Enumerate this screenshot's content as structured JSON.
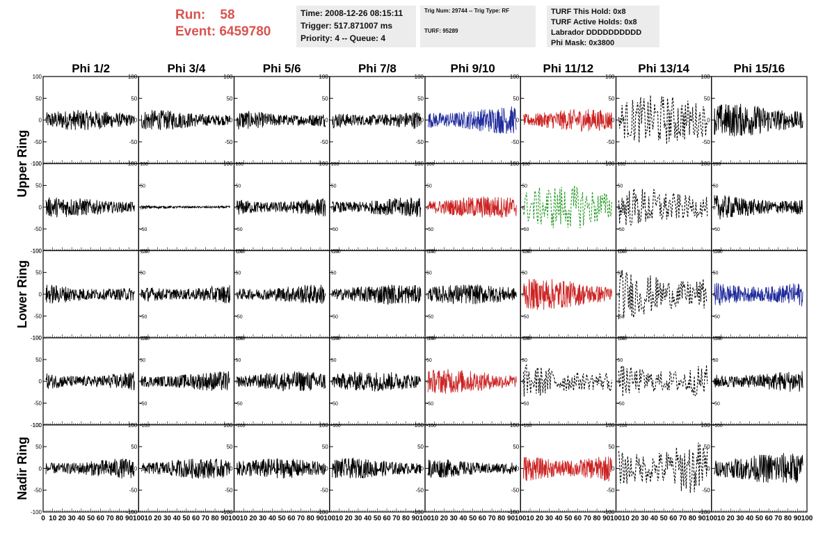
{
  "run_info": {
    "run_label": "Run:",
    "run_value": "58",
    "event_label": "Event:",
    "event_value": "6459780"
  },
  "header_panel": {
    "time": "Time: 2008-12-26 08:15:11",
    "trigger": "Trigger: 517.871007 ms",
    "priority": "Priority: 4 -- Queue: 4"
  },
  "trig_panel": {
    "trig": "Trig Num: 29744 -- Trig Type: RF",
    "turf": "TURF: 95289"
  },
  "turf_panel": {
    "this_hold": "TURF This Hold: 0x8",
    "active_holds": "TURF Active Holds: 0x8",
    "labrador": "Labrador DDDDDDDDDD",
    "phi_mask": "Phi Mask: 0x3800"
  },
  "colors": {
    "run_text": "#d9534f",
    "black": "#000000",
    "red": "#cc2222",
    "blue": "#1f2a9c",
    "green": "#229922"
  },
  "chart_data": {
    "type": "line",
    "columns": [
      "Phi 1/2",
      "Phi 3/4",
      "Phi 5/6",
      "Phi 7/8",
      "Phi 9/10",
      "Phi 11/12",
      "Phi 13/14",
      "Phi 15/16"
    ],
    "ring_labels": [
      "Upper Ring",
      "Lower Ring",
      "Nadir Ring"
    ],
    "ylim": [
      -100,
      100
    ],
    "xlim": [
      0,
      100
    ],
    "y_ticks": [
      "100",
      "50",
      "0",
      "-50",
      "-100"
    ],
    "x_tick_labels": [
      "0",
      "10",
      "20",
      "30",
      "40",
      "50",
      "60",
      "70",
      "80",
      "90",
      "100"
    ],
    "n_rows": 5,
    "cells": [
      [
        "black-18",
        "black-18",
        "black-18",
        "black-18",
        "blue-25",
        "red-20",
        "black-dashed-45",
        "black-30"
      ],
      [
        "black-18",
        "black-flat",
        "black-18",
        "black-18",
        "red-20",
        "green-dashed-40",
        "black-dashed-35",
        "black-22"
      ],
      [
        "black-18",
        "black-18",
        "black-18",
        "black-18",
        "black-18",
        "red-28",
        "black-dashed-45",
        "blue-25"
      ],
      [
        "black-18",
        "black-18",
        "black-18",
        "black-18",
        "red-22",
        "black-dashed-30",
        "black-dashed-35",
        "black-20"
      ],
      [
        "black-18",
        "black-18",
        "black-18",
        "black-18",
        "black-18",
        "red-28",
        "black-dashed-50",
        "black-28"
      ]
    ]
  }
}
